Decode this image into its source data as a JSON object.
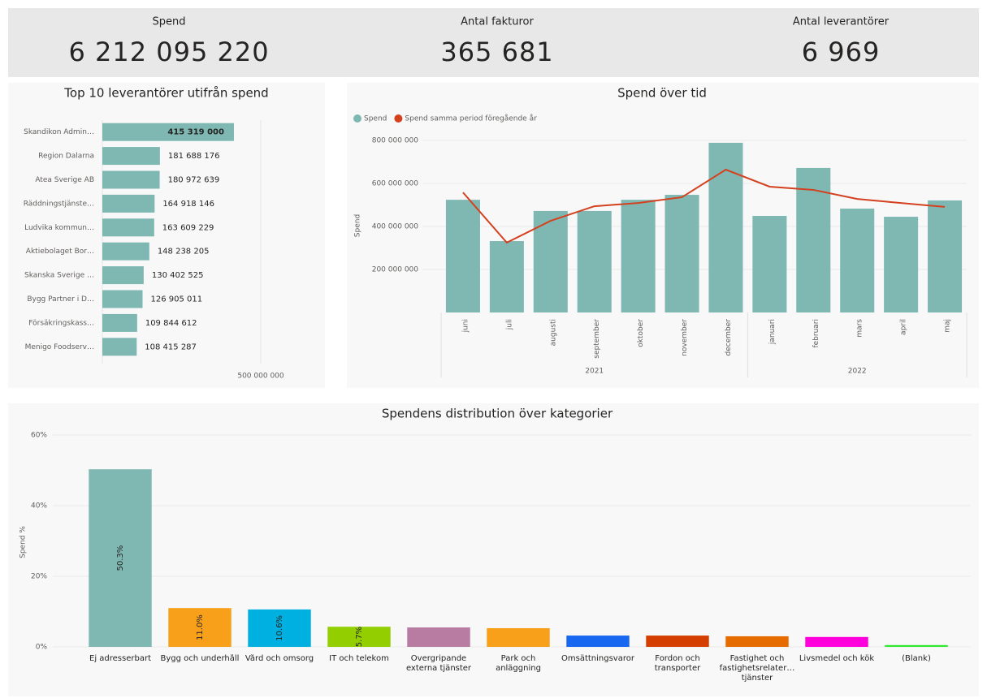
{
  "kpis": [
    {
      "label": "Spend",
      "value": "6 212 095 220"
    },
    {
      "label": "Antal fakturor",
      "value": "365 681"
    },
    {
      "label": "Antal leverantörer",
      "value": "6 969"
    }
  ],
  "chart_data": [
    {
      "type": "hbar",
      "title": "Top 10 leverantörer utifrån spend",
      "categories": [
        "Skandikon Admin…",
        "Region Dalarna",
        "Atea Sverige AB",
        "Räddningstjänste…",
        "Ludvika kommun…",
        "Aktiebolaget Bor…",
        "Skanska Sverige …",
        "Bygg Partner i D…",
        "Försäkringskass…",
        "Menigo Foodserv…"
      ],
      "values": [
        415319000,
        181688176,
        180972639,
        164918146,
        163609229,
        148238205,
        130402525,
        126905011,
        109844612,
        108415287
      ],
      "value_labels": [
        "415 319 000",
        "181 688 176",
        "180 972 639",
        "164 918 146",
        "163 609 229",
        "148 238 205",
        "130 402 525",
        "126 905 011",
        "109 844 612",
        "108 415 287"
      ],
      "color": "#7fb8b3",
      "xlim": [
        0,
        600000000
      ],
      "xticks": [
        {
          "value": 500000000,
          "label": "500 000 000"
        }
      ],
      "grid": true
    },
    {
      "type": "combo",
      "title": "Spend över tid",
      "ylabel": "Spend",
      "categories": [
        "juni",
        "juli",
        "augusti",
        "september",
        "oktober",
        "november",
        "december",
        "januari",
        "februari",
        "mars",
        "april",
        "maj"
      ],
      "category_groups": [
        {
          "label": "2021",
          "size": 7
        },
        {
          "label": "2022",
          "size": 5
        }
      ],
      "series": [
        {
          "name": "Spend",
          "kind": "bar",
          "color": "#7fb8b3",
          "values": [
            524000000,
            332000000,
            472000000,
            472000000,
            524000000,
            547000000,
            789000000,
            449000000,
            672000000,
            483000000,
            445000000,
            521000000
          ]
        },
        {
          "name": "Spend samma period föregående år",
          "kind": "line",
          "color": "#d4411e",
          "values": [
            558000000,
            325000000,
            426000000,
            494000000,
            509000000,
            536000000,
            664000000,
            585000000,
            570000000,
            528000000,
            509000000,
            491000000
          ]
        }
      ],
      "ylim": [
        0,
        800000000
      ],
      "yticks": [
        {
          "value": 200000000,
          "label": "200 000 000"
        },
        {
          "value": 400000000,
          "label": "400 000 000"
        },
        {
          "value": 600000000,
          "label": "600 000 000"
        },
        {
          "value": 800000000,
          "label": "800 000 000"
        }
      ],
      "grid": true,
      "legend": "top-left"
    },
    {
      "type": "bar",
      "title": "Spendens distribution över kategorier",
      "ylabel": "Spend %",
      "categories": [
        "Ej adresserbart",
        "Bygg och underhåll",
        "Vård och omsorg",
        "IT och telekom",
        "Övergripande externa tjänster",
        "Park och anläggning",
        "Omsättningsvaror",
        "Fordon och transporter",
        "Fastighet och fastighetsrelater… tjänster",
        "Livsmedel och kök",
        "(Blank)"
      ],
      "values": [
        50.3,
        11.0,
        10.6,
        5.7,
        5.5,
        5.3,
        3.2,
        3.2,
        3.0,
        2.8,
        0.5
      ],
      "value_labels": [
        "50.3%",
        "11.0%",
        "10.6%",
        "5.7%",
        null,
        null,
        null,
        null,
        null,
        null,
        null
      ],
      "colors": [
        "#7fb8b3",
        "#f9a01b",
        "#00b0e0",
        "#93cf00",
        "#b87ba2",
        "#f9a01b",
        "#1767f0",
        "#d43f00",
        "#e66c00",
        "#ff00dc",
        "#2ee82e"
      ],
      "ylim": [
        0,
        60
      ],
      "yticks": [
        {
          "value": 0,
          "label": "0%"
        },
        {
          "value": 20,
          "label": "20%"
        },
        {
          "value": 40,
          "label": "40%"
        },
        {
          "value": 60,
          "label": "60%"
        }
      ],
      "grid": true
    }
  ]
}
